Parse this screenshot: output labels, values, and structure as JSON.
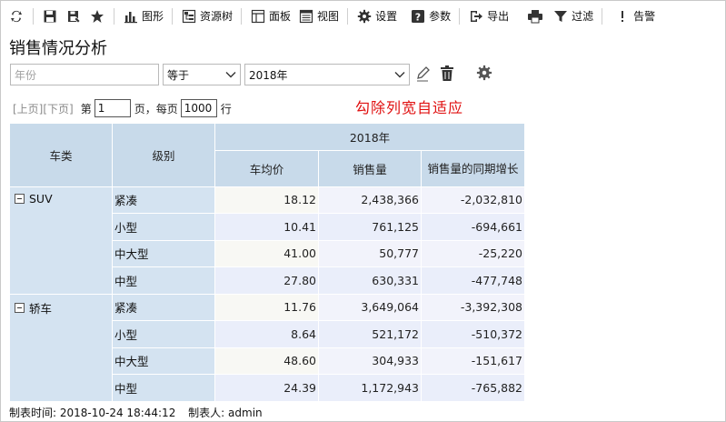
{
  "toolbar": {
    "items": [
      {
        "name": "refresh",
        "label": ""
      },
      {
        "name": "save",
        "label": ""
      },
      {
        "name": "save-as",
        "label": ""
      },
      {
        "name": "favorite",
        "label": ""
      },
      {
        "name": "chart",
        "label": "图形"
      },
      {
        "name": "resource-tree",
        "label": "资源树"
      },
      {
        "name": "panel",
        "label": "面板"
      },
      {
        "name": "view",
        "label": "视图"
      },
      {
        "name": "settings",
        "label": "设置"
      },
      {
        "name": "params",
        "label": "参数"
      },
      {
        "name": "export",
        "label": "导出"
      },
      {
        "name": "print",
        "label": ""
      },
      {
        "name": "filter",
        "label": "过滤"
      },
      {
        "name": "alert",
        "label": "告警"
      }
    ]
  },
  "page_title": "销售情况分析",
  "filter": {
    "field_placeholder": "年份",
    "operator": "等于",
    "value": "2018年"
  },
  "pager": {
    "prev": "[上页]",
    "next": "[下页]",
    "page_prefix": "第",
    "page_value": "1",
    "page_suffix": "页，每页",
    "size_value": "1000",
    "size_suffix": "行"
  },
  "annotation": "勾除列宽自适应",
  "table": {
    "year_header": "2018年",
    "col_category": "车类",
    "col_level": "级别",
    "measures": [
      "车均价",
      "销售量",
      "销售量的同期增长"
    ],
    "groups": [
      {
        "category": "SUV",
        "rows": [
          {
            "level": "紧凑",
            "price": "18.12",
            "sales": "2,438,366",
            "growth": "-2,032,810"
          },
          {
            "level": "小型",
            "price": "10.41",
            "sales": "761,125",
            "growth": "-694,661"
          },
          {
            "level": "中大型",
            "price": "41.00",
            "sales": "50,777",
            "growth": "-25,220"
          },
          {
            "level": "中型",
            "price": "27.80",
            "sales": "630,331",
            "growth": "-477,748"
          }
        ]
      },
      {
        "category": "轿车",
        "rows": [
          {
            "level": "紧凑",
            "price": "11.76",
            "sales": "3,649,064",
            "growth": "-3,392,308"
          },
          {
            "level": "小型",
            "price": "8.64",
            "sales": "521,172",
            "growth": "-510,372"
          },
          {
            "level": "中大型",
            "price": "48.60",
            "sales": "304,933",
            "growth": "-151,617"
          },
          {
            "level": "中型",
            "price": "24.39",
            "sales": "1,172,943",
            "growth": "-765,882"
          }
        ]
      }
    ]
  },
  "footer": {
    "time_label": "制表时间:",
    "time_value": "2018-10-24 18:44:12",
    "author_label": "制表人:",
    "author_value": "admin"
  }
}
